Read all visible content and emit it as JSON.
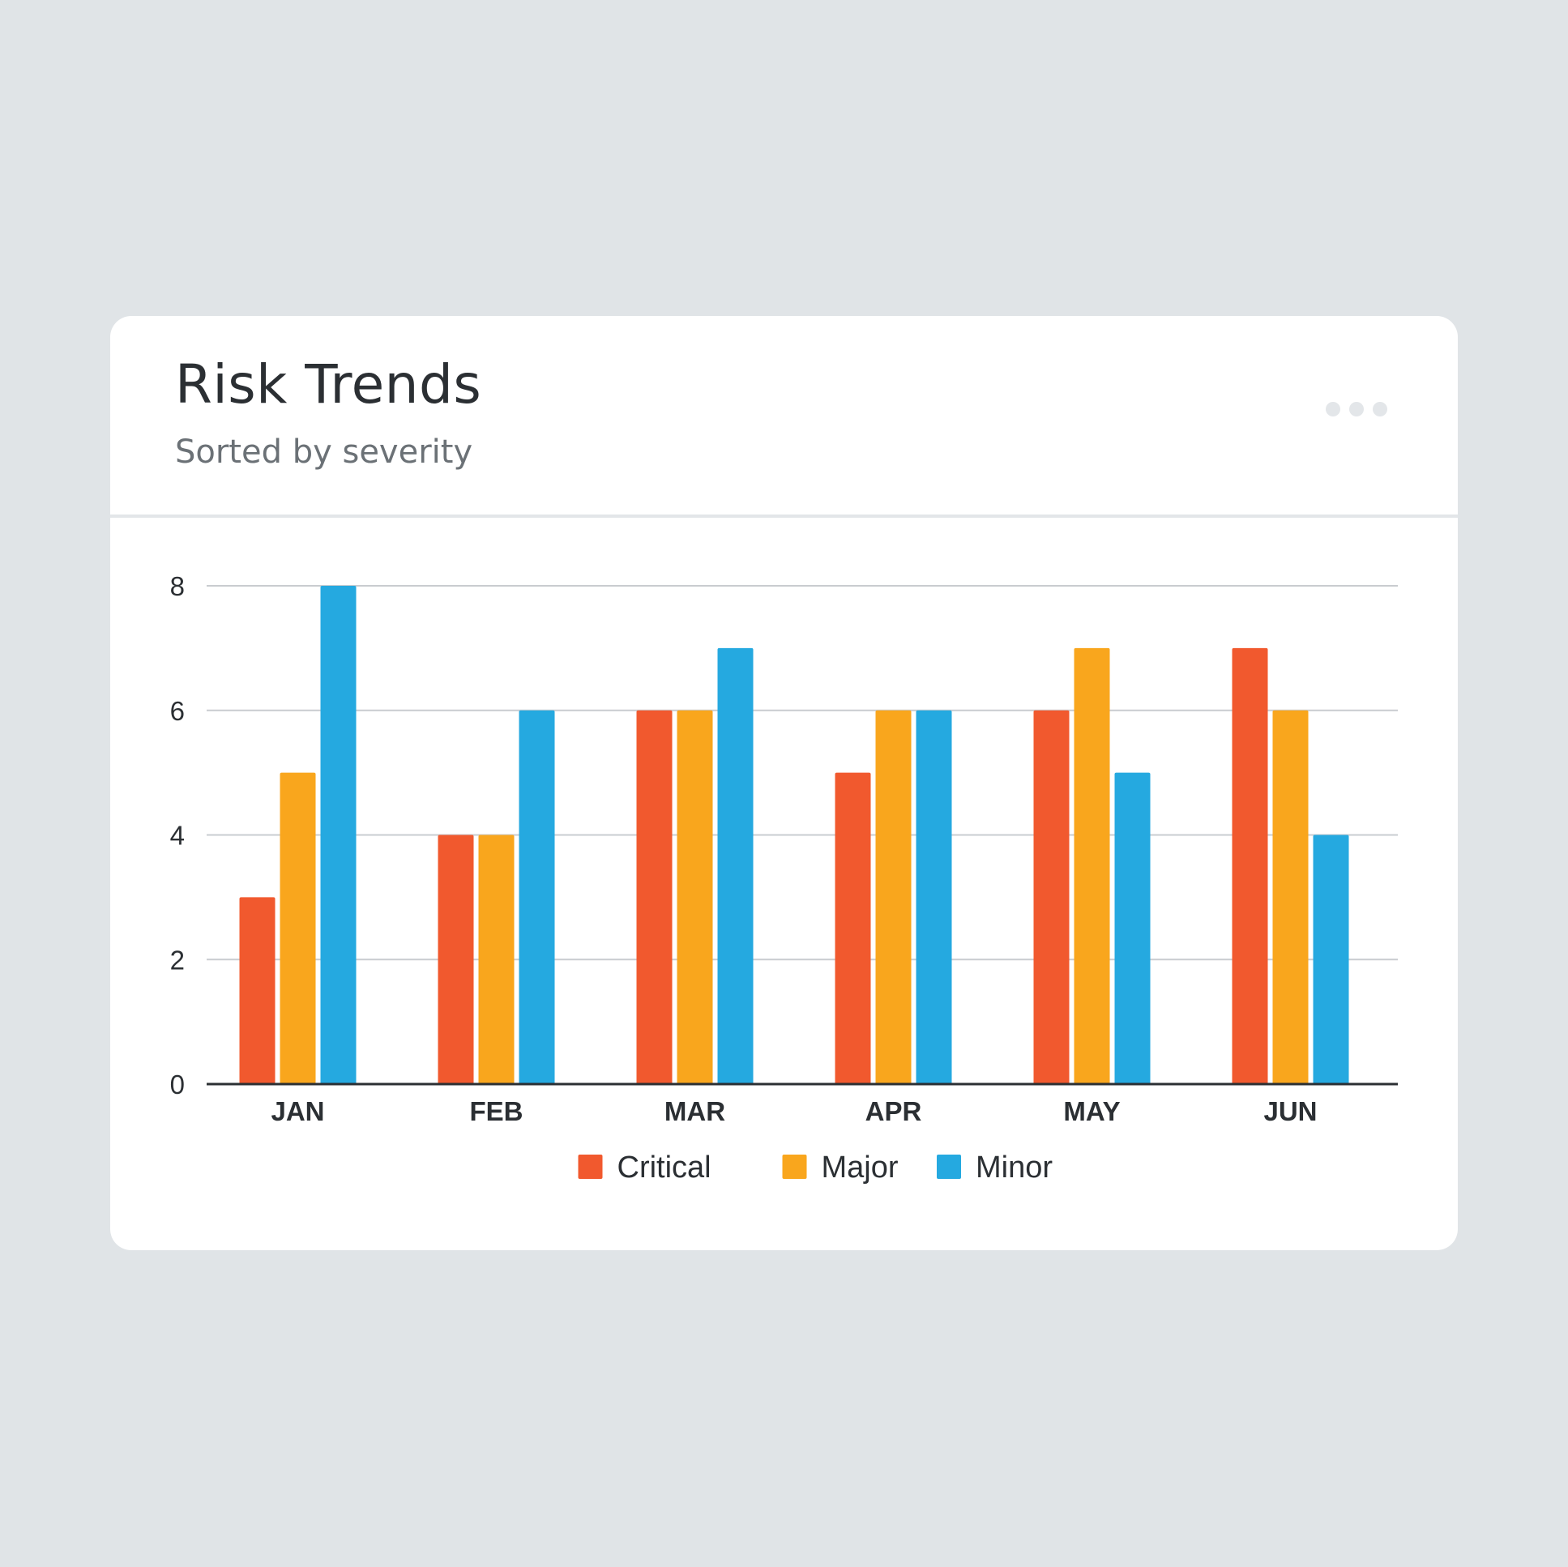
{
  "card": {
    "title": "Risk Trends",
    "subtitle": "Sorted by severity",
    "more_icon": "more-horizontal-icon"
  },
  "chart_data": {
    "type": "bar",
    "title": "",
    "xlabel": "",
    "ylabel": "",
    "categories": [
      "JAN",
      "FEB",
      "MAR",
      "APR",
      "MAY",
      "JUN"
    ],
    "series": [
      {
        "name": "Critical",
        "color": "#f1592e",
        "values": [
          3,
          4,
          6,
          5,
          6,
          7
        ]
      },
      {
        "name": "Major",
        "color": "#f9a61d",
        "values": [
          5,
          4,
          6,
          6,
          7,
          6
        ]
      },
      {
        "name": "Minor",
        "color": "#25a9e0",
        "values": [
          8,
          6,
          7,
          6,
          5,
          4
        ]
      }
    ],
    "ylim": [
      0,
      8
    ],
    "yticks": [
      "0",
      "2",
      "4",
      "6",
      "8"
    ],
    "grid": true,
    "legend": "bottom-center"
  }
}
